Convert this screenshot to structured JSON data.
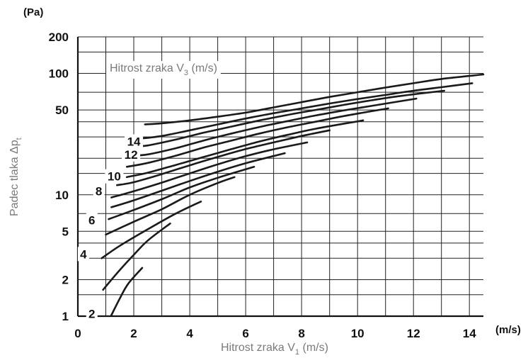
{
  "chart_data": {
    "type": "line",
    "title": "",
    "xlabel": "Hitrost zraka V",
    "xlabel_sub": "1",
    "xlabel_unit": " (m/s)",
    "x_unit_corner": "(m/s)",
    "ylabel": "Padec tlaka Δp",
    "ylabel_sub": "t",
    "y_unit_corner": "(Pa)",
    "legend_title": "Hitrost zraka V",
    "legend_sub": "3",
    "legend_unit": " (m/s)",
    "y_scale": "log",
    "xlim": [
      0,
      14.5
    ],
    "ylim": [
      1,
      200
    ],
    "x_ticks": [
      0,
      2,
      4,
      6,
      8,
      10,
      12,
      14
    ],
    "y_tick_labels": [
      {
        "value": 1,
        "label": "1"
      },
      {
        "value": 2,
        "label": "2"
      },
      {
        "value": 5,
        "label": "5"
      },
      {
        "value": 10,
        "label": "10"
      },
      {
        "value": 50,
        "label": "50"
      },
      {
        "value": 100,
        "label": "100"
      },
      {
        "value": 200,
        "label": "200"
      }
    ],
    "y_grid": [
      1,
      1.5,
      2,
      3,
      4,
      5,
      7,
      10,
      15,
      20,
      30,
      40,
      50,
      70,
      100,
      150,
      200
    ],
    "x_grid": [
      0,
      1,
      2,
      3,
      4,
      5,
      6,
      7,
      8,
      9,
      10,
      11,
      12,
      13,
      14
    ],
    "grid": true,
    "series": [
      {
        "name": "2",
        "label_at": [
          0.5,
          1.05
        ],
        "points": [
          [
            1.2,
            1.02
          ],
          [
            1.5,
            1.4
          ],
          [
            1.8,
            1.85
          ],
          [
            2.3,
            2.5
          ]
        ]
      },
      {
        "name": "",
        "label_at": null,
        "points": [
          [
            0.9,
            1.65
          ],
          [
            1.5,
            2.4
          ],
          [
            2.0,
            3.2
          ],
          [
            2.5,
            4.2
          ],
          [
            3.3,
            5.8
          ]
        ]
      },
      {
        "name": "4",
        "label_at": [
          0.2,
          3.25
        ],
        "points": [
          [
            0.85,
            3.0
          ],
          [
            1.5,
            3.8
          ],
          [
            2.5,
            5.2
          ],
          [
            3.5,
            7.0
          ],
          [
            4.4,
            8.8
          ]
        ]
      },
      {
        "name": "",
        "label_at": null,
        "points": [
          [
            1.0,
            4.7
          ],
          [
            2.0,
            6.0
          ],
          [
            3.0,
            7.6
          ],
          [
            4.0,
            10.0
          ],
          [
            5.0,
            12.5
          ],
          [
            5.6,
            14.0
          ]
        ]
      },
      {
        "name": "6",
        "label_at": [
          0.5,
          6.2
        ],
        "points": [
          [
            1.1,
            6.3
          ],
          [
            2.0,
            7.5
          ],
          [
            3.0,
            9.2
          ],
          [
            4.0,
            11.5
          ],
          [
            5.0,
            13.8
          ],
          [
            6.3,
            17.0
          ]
        ]
      },
      {
        "name": "",
        "label_at": null,
        "points": [
          [
            1.2,
            7.9
          ],
          [
            2.0,
            9.0
          ],
          [
            3.0,
            10.8
          ],
          [
            4.0,
            13.0
          ],
          [
            5.0,
            15.5
          ],
          [
            6.0,
            18.2
          ],
          [
            7.4,
            22.0
          ]
        ]
      },
      {
        "name": "8",
        "label_at": [
          0.75,
          10.7
        ],
        "points": [
          [
            1.2,
            9.5
          ],
          [
            2.0,
            10.7
          ],
          [
            3.0,
            12.6
          ],
          [
            4.0,
            15.0
          ],
          [
            5.0,
            17.8
          ],
          [
            6.0,
            20.8
          ],
          [
            7.0,
            23.7
          ],
          [
            8.2,
            27.0
          ]
        ]
      },
      {
        "name": "",
        "label_at": null,
        "points": [
          [
            1.4,
            12.0
          ],
          [
            2.0,
            12.7
          ],
          [
            3.0,
            14.8
          ],
          [
            4.0,
            17.5
          ],
          [
            5.0,
            20.5
          ],
          [
            6.0,
            23.8
          ],
          [
            7.0,
            27.0
          ],
          [
            8.0,
            30.5
          ],
          [
            9.0,
            34.0
          ]
        ]
      },
      {
        "name": "10",
        "label_at": [
          1.3,
          14.2
        ],
        "points": [
          [
            1.75,
            14.0
          ],
          [
            2.5,
            15.2
          ],
          [
            3.5,
            17.6
          ],
          [
            4.5,
            20.5
          ],
          [
            5.5,
            23.8
          ],
          [
            6.5,
            27.5
          ],
          [
            7.5,
            31.2
          ],
          [
            8.5,
            35.0
          ],
          [
            10.2,
            41.0
          ]
        ]
      },
      {
        "name": "",
        "label_at": null,
        "points": [
          [
            1.75,
            17.0
          ],
          [
            2.5,
            18.3
          ],
          [
            3.5,
            21.0
          ],
          [
            4.5,
            24.5
          ],
          [
            5.5,
            28.0
          ],
          [
            6.5,
            32.0
          ],
          [
            7.5,
            36.0
          ],
          [
            8.5,
            40.0
          ],
          [
            9.5,
            44.5
          ],
          [
            11.1,
            51.5
          ]
        ]
      },
      {
        "name": "12",
        "label_at": [
          1.9,
          21.5
        ],
        "points": [
          [
            1.9,
            21.0
          ],
          [
            2.5,
            21.5
          ],
          [
            3.5,
            24.2
          ],
          [
            4.5,
            28.0
          ],
          [
            5.5,
            32.0
          ],
          [
            6.5,
            36.2
          ],
          [
            7.5,
            40.5
          ],
          [
            8.5,
            45.0
          ],
          [
            9.5,
            49.5
          ],
          [
            10.5,
            54.0
          ],
          [
            12.1,
            62.0
          ]
        ]
      },
      {
        "name": "",
        "label_at": null,
        "points": [
          [
            2.0,
            25.0
          ],
          [
            2.5,
            25.5
          ],
          [
            3.5,
            28.5
          ],
          [
            4.5,
            32.5
          ],
          [
            5.5,
            36.5
          ],
          [
            6.5,
            41.0
          ],
          [
            7.5,
            45.5
          ],
          [
            8.5,
            50.0
          ],
          [
            9.5,
            55.0
          ],
          [
            10.5,
            60.0
          ],
          [
            11.5,
            65.0
          ],
          [
            13.1,
            72.0
          ]
        ]
      },
      {
        "name": "14",
        "label_at": [
          2.0,
          27.5
        ],
        "points": [
          [
            2.2,
            29.0
          ],
          [
            3.0,
            30.5
          ],
          [
            4.0,
            34.0
          ],
          [
            5.0,
            38.0
          ],
          [
            6.0,
            42.5
          ],
          [
            7.0,
            47.0
          ],
          [
            8.0,
            51.5
          ],
          [
            9.0,
            56.5
          ],
          [
            10.0,
            61.5
          ],
          [
            11.0,
            66.5
          ],
          [
            12.0,
            72.0
          ],
          [
            13.0,
            77.0
          ],
          [
            14.1,
            83.0
          ]
        ]
      },
      {
        "name": "",
        "label_at": null,
        "points": [
          [
            2.4,
            38.0
          ],
          [
            3.0,
            38.8
          ],
          [
            4.0,
            41.0
          ],
          [
            5.0,
            44.0
          ],
          [
            6.0,
            47.5
          ],
          [
            7.0,
            52.5
          ],
          [
            8.0,
            58.0
          ],
          [
            9.0,
            64.0
          ],
          [
            10.0,
            70.0
          ],
          [
            11.0,
            76.5
          ],
          [
            12.0,
            83.0
          ],
          [
            13.0,
            90.0
          ],
          [
            14.5,
            98.0
          ]
        ]
      }
    ]
  }
}
